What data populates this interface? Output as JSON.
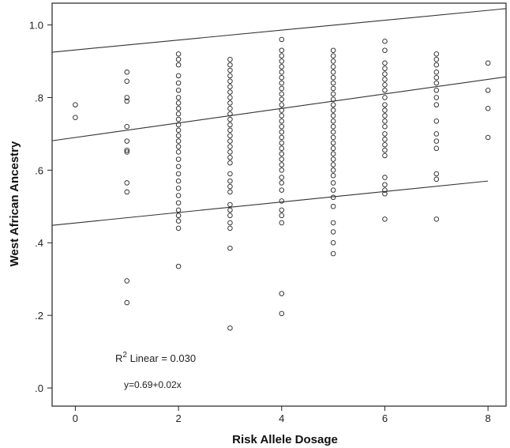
{
  "chart_data": {
    "type": "scatter",
    "title": "",
    "xlabel": "Risk Allele Dosage",
    "ylabel": "West African Ancestry",
    "xlim": [
      -0.45,
      8.35
    ],
    "ylim": [
      -0.05,
      1.06
    ],
    "x_ticks": [
      0,
      2,
      4,
      6,
      8
    ],
    "x_tick_labels": [
      "0",
      "2",
      "4",
      "6",
      "8"
    ],
    "y_ticks": [
      0.0,
      0.2,
      0.4,
      0.6,
      0.8,
      1.0
    ],
    "y_tick_labels": [
      ".0",
      ".2",
      ".4",
      ".6",
      ".8",
      "1.0"
    ],
    "grid": false,
    "legend": "none",
    "annotations": {
      "r2_base": "R",
      "r2_sup": "2",
      "r2_rest": " Linear = 0.030",
      "equation": "y=0.69+0.02x"
    },
    "fit_line": {
      "intercept": 0.69,
      "slope": 0.02
    },
    "prediction_band_upper": [
      [
        -0.45,
        0.925
      ],
      [
        8.35,
        1.045
      ]
    ],
    "prediction_band_lower": [
      [
        -0.45,
        0.448
      ],
      [
        8.0,
        0.57
      ]
    ],
    "points": [
      [
        0,
        0.78
      ],
      [
        0,
        0.745
      ],
      [
        1,
        0.87
      ],
      [
        1,
        0.845
      ],
      [
        1,
        0.8
      ],
      [
        1,
        0.79
      ],
      [
        1,
        0.72
      ],
      [
        1,
        0.68
      ],
      [
        1,
        0.655
      ],
      [
        1,
        0.65
      ],
      [
        1,
        0.565
      ],
      [
        1,
        0.54
      ],
      [
        1,
        0.295
      ],
      [
        1,
        0.235
      ],
      [
        2,
        0.92
      ],
      [
        2,
        0.905
      ],
      [
        2,
        0.89
      ],
      [
        2,
        0.86
      ],
      [
        2,
        0.84
      ],
      [
        2,
        0.82
      ],
      [
        2,
        0.8
      ],
      [
        2,
        0.785
      ],
      [
        2,
        0.77
      ],
      [
        2,
        0.755
      ],
      [
        2,
        0.74
      ],
      [
        2,
        0.725
      ],
      [
        2,
        0.71
      ],
      [
        2,
        0.695
      ],
      [
        2,
        0.68
      ],
      [
        2,
        0.665
      ],
      [
        2,
        0.65
      ],
      [
        2,
        0.63
      ],
      [
        2,
        0.61
      ],
      [
        2,
        0.59
      ],
      [
        2,
        0.57
      ],
      [
        2,
        0.55
      ],
      [
        2,
        0.53
      ],
      [
        2,
        0.51
      ],
      [
        2,
        0.49
      ],
      [
        2,
        0.475
      ],
      [
        2,
        0.46
      ],
      [
        2,
        0.44
      ],
      [
        2,
        0.335
      ],
      [
        3,
        0.905
      ],
      [
        3,
        0.89
      ],
      [
        3,
        0.875
      ],
      [
        3,
        0.86
      ],
      [
        3,
        0.845
      ],
      [
        3,
        0.83
      ],
      [
        3,
        0.815
      ],
      [
        3,
        0.8
      ],
      [
        3,
        0.785
      ],
      [
        3,
        0.77
      ],
      [
        3,
        0.755
      ],
      [
        3,
        0.74
      ],
      [
        3,
        0.725
      ],
      [
        3,
        0.71
      ],
      [
        3,
        0.695
      ],
      [
        3,
        0.68
      ],
      [
        3,
        0.665
      ],
      [
        3,
        0.65
      ],
      [
        3,
        0.635
      ],
      [
        3,
        0.62
      ],
      [
        3,
        0.59
      ],
      [
        3,
        0.57
      ],
      [
        3,
        0.555
      ],
      [
        3,
        0.54
      ],
      [
        3,
        0.505
      ],
      [
        3,
        0.49
      ],
      [
        3,
        0.475
      ],
      [
        3,
        0.455
      ],
      [
        3,
        0.44
      ],
      [
        3,
        0.385
      ],
      [
        3,
        0.165
      ],
      [
        4,
        0.96
      ],
      [
        4,
        0.93
      ],
      [
        4,
        0.915
      ],
      [
        4,
        0.9
      ],
      [
        4,
        0.885
      ],
      [
        4,
        0.87
      ],
      [
        4,
        0.855
      ],
      [
        4,
        0.84
      ],
      [
        4,
        0.825
      ],
      [
        4,
        0.81
      ],
      [
        4,
        0.795
      ],
      [
        4,
        0.78
      ],
      [
        4,
        0.765
      ],
      [
        4,
        0.75
      ],
      [
        4,
        0.735
      ],
      [
        4,
        0.72
      ],
      [
        4,
        0.705
      ],
      [
        4,
        0.69
      ],
      [
        4,
        0.675
      ],
      [
        4,
        0.66
      ],
      [
        4,
        0.645
      ],
      [
        4,
        0.63
      ],
      [
        4,
        0.615
      ],
      [
        4,
        0.6
      ],
      [
        4,
        0.58
      ],
      [
        4,
        0.565
      ],
      [
        4,
        0.545
      ],
      [
        4,
        0.515
      ],
      [
        4,
        0.49
      ],
      [
        4,
        0.475
      ],
      [
        4,
        0.455
      ],
      [
        4,
        0.26
      ],
      [
        4,
        0.205
      ],
      [
        5,
        0.93
      ],
      [
        5,
        0.915
      ],
      [
        5,
        0.9
      ],
      [
        5,
        0.885
      ],
      [
        5,
        0.87
      ],
      [
        5,
        0.855
      ],
      [
        5,
        0.84
      ],
      [
        5,
        0.825
      ],
      [
        5,
        0.81
      ],
      [
        5,
        0.795
      ],
      [
        5,
        0.78
      ],
      [
        5,
        0.765
      ],
      [
        5,
        0.75
      ],
      [
        5,
        0.735
      ],
      [
        5,
        0.72
      ],
      [
        5,
        0.705
      ],
      [
        5,
        0.69
      ],
      [
        5,
        0.675
      ],
      [
        5,
        0.66
      ],
      [
        5,
        0.645
      ],
      [
        5,
        0.63
      ],
      [
        5,
        0.615
      ],
      [
        5,
        0.6
      ],
      [
        5,
        0.585
      ],
      [
        5,
        0.565
      ],
      [
        5,
        0.545
      ],
      [
        5,
        0.525
      ],
      [
        5,
        0.5
      ],
      [
        5,
        0.455
      ],
      [
        5,
        0.43
      ],
      [
        5,
        0.4
      ],
      [
        5,
        0.37
      ],
      [
        6,
        0.955
      ],
      [
        6,
        0.93
      ],
      [
        6,
        0.895
      ],
      [
        6,
        0.88
      ],
      [
        6,
        0.865
      ],
      [
        6,
        0.85
      ],
      [
        6,
        0.835
      ],
      [
        6,
        0.82
      ],
      [
        6,
        0.8
      ],
      [
        6,
        0.78
      ],
      [
        6,
        0.765
      ],
      [
        6,
        0.75
      ],
      [
        6,
        0.735
      ],
      [
        6,
        0.72
      ],
      [
        6,
        0.7
      ],
      [
        6,
        0.685
      ],
      [
        6,
        0.67
      ],
      [
        6,
        0.655
      ],
      [
        6,
        0.64
      ],
      [
        6,
        0.58
      ],
      [
        6,
        0.56
      ],
      [
        6,
        0.545
      ],
      [
        6,
        0.535
      ],
      [
        6,
        0.465
      ],
      [
        7,
        0.92
      ],
      [
        7,
        0.905
      ],
      [
        7,
        0.89
      ],
      [
        7,
        0.87
      ],
      [
        7,
        0.855
      ],
      [
        7,
        0.84
      ],
      [
        7,
        0.82
      ],
      [
        7,
        0.8
      ],
      [
        7,
        0.78
      ],
      [
        7,
        0.735
      ],
      [
        7,
        0.7
      ],
      [
        7,
        0.68
      ],
      [
        7,
        0.66
      ],
      [
        7,
        0.59
      ],
      [
        7,
        0.575
      ],
      [
        7,
        0.465
      ],
      [
        8,
        0.895
      ],
      [
        8,
        0.82
      ],
      [
        8,
        0.77
      ],
      [
        8,
        0.69
      ]
    ]
  }
}
